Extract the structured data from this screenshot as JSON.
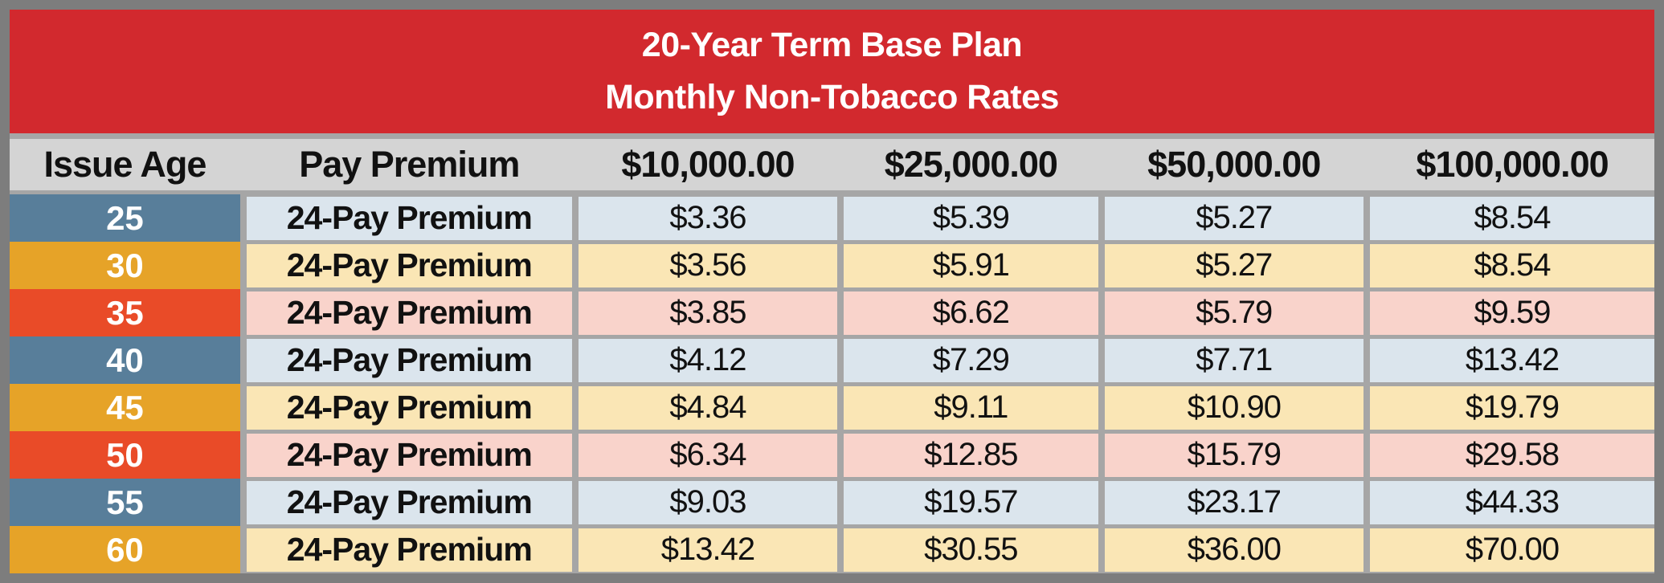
{
  "banner": {
    "title_line1": "20-Year Term Base Plan",
    "title_line2": "Monthly Non-Tobacco Rates"
  },
  "table": {
    "headers": [
      "Issue Age",
      "Pay Premium",
      "$10,000.00",
      "$25,000.00",
      "$50,000.00",
      "$100,000.00"
    ],
    "rows": [
      {
        "age": "25",
        "label": "24-Pay Premium",
        "values": [
          "$3.36",
          "$5.39",
          "$5.27",
          "$8.54"
        ],
        "theme": "blue"
      },
      {
        "age": "30",
        "label": "24-Pay Premium",
        "values": [
          "$3.56",
          "$5.91",
          "$5.27",
          "$8.54"
        ],
        "theme": "gold"
      },
      {
        "age": "35",
        "label": "24-Pay Premium",
        "values": [
          "$3.85",
          "$6.62",
          "$5.79",
          "$9.59"
        ],
        "theme": "red"
      },
      {
        "age": "40",
        "label": "24-Pay Premium",
        "values": [
          "$4.12",
          "$7.29",
          "$7.71",
          "$13.42"
        ],
        "theme": "blue"
      },
      {
        "age": "45",
        "label": "24-Pay Premium",
        "values": [
          "$4.84",
          "$9.11",
          "$10.90",
          "$19.79"
        ],
        "theme": "gold"
      },
      {
        "age": "50",
        "label": "24-Pay Premium",
        "values": [
          "$6.34",
          "$12.85",
          "$15.79",
          "$29.58"
        ],
        "theme": "red"
      },
      {
        "age": "55",
        "label": "24-Pay Premium",
        "values": [
          "$9.03",
          "$19.57",
          "$23.17",
          "$44.33"
        ],
        "theme": "blue"
      },
      {
        "age": "60",
        "label": "24-Pay Premium",
        "values": [
          "$13.42",
          "$30.55",
          "$36.00",
          "$70.00"
        ],
        "theme": "gold"
      }
    ]
  },
  "colors": {
    "banner_red": "#d2292e",
    "frame_gray": "#7d7d7d",
    "gap_gray": "#a6a6a6",
    "header_gray": "#d4d4d4",
    "age_blue": "#587e9a",
    "age_gold": "#e6a328",
    "age_red": "#e94b28",
    "row_blue": "#dbe5ed",
    "row_gold": "#fae6b5",
    "row_red": "#f9d3cb",
    "title_text": "#ffffff",
    "body_text": "#111111"
  }
}
